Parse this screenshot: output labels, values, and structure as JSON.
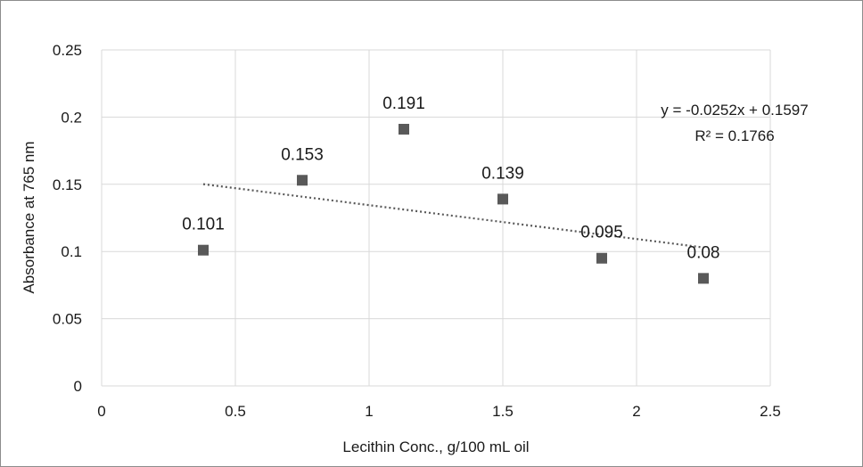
{
  "chart_data": {
    "type": "scatter",
    "title": "",
    "xlabel": "Lecithin Conc., g/100 mL oil",
    "ylabel": "Absorbance at 765 nm",
    "xlim": [
      0,
      2.5
    ],
    "ylim": [
      0,
      0.25
    ],
    "xticks": [
      0,
      0.5,
      1,
      1.5,
      2,
      2.5
    ],
    "yticks": [
      0,
      0.05,
      0.1,
      0.15,
      0.2,
      0.25
    ],
    "xtick_labels": [
      "0",
      "0.5",
      "1",
      "1.5",
      "2",
      "2.5"
    ],
    "ytick_labels": [
      "0",
      "0.05",
      "0.1",
      "0.15",
      "0.2",
      "0.25"
    ],
    "grid": true,
    "legend": "none",
    "marker": "square",
    "marker_color": "#595959",
    "trendline_color": "#595959",
    "gridline_color": "#d9d9d9",
    "points": [
      {
        "x": 0.38,
        "y": 0.101,
        "label": "0.101"
      },
      {
        "x": 0.75,
        "y": 0.153,
        "label": "0.153"
      },
      {
        "x": 1.13,
        "y": 0.191,
        "label": "0.191"
      },
      {
        "x": 1.5,
        "y": 0.139,
        "label": "0.139"
      },
      {
        "x": 1.87,
        "y": 0.095,
        "label": "0.095"
      },
      {
        "x": 2.25,
        "y": 0.08,
        "label": "0.08"
      }
    ],
    "trendline": {
      "type": "linear",
      "slope": -0.0252,
      "intercept": 0.1597,
      "x_range": [
        0.38,
        2.25
      ],
      "style": "dotted",
      "equation": "y = -0.0252x + 0.1597",
      "r_squared": "R² = 0.1766"
    }
  }
}
